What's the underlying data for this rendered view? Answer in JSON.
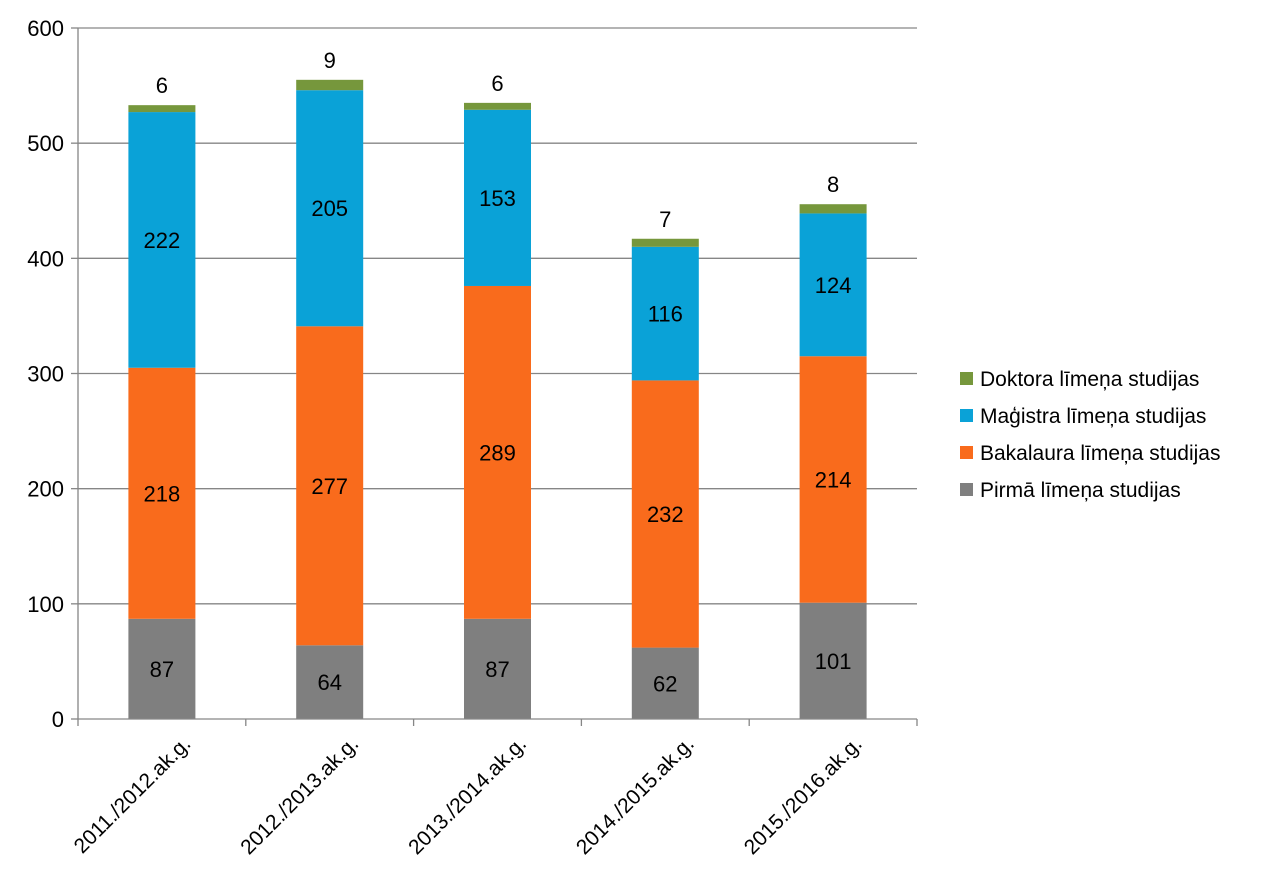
{
  "chart_data": {
    "type": "bar",
    "stacked": true,
    "categories": [
      "2011./2012.ak.g.",
      "2012./2013.ak.g.",
      "2013./2014.ak.g.",
      "2014./2015.ak.g.",
      "2015./2016.ak.g."
    ],
    "series": [
      {
        "name": "Pirmā līmeņa studijas",
        "color": "#7f7f7f",
        "values": [
          87,
          64,
          87,
          62,
          101
        ]
      },
      {
        "name": "Bakalaura līmeņa studijas",
        "color": "#f96b1c",
        "values": [
          218,
          277,
          289,
          232,
          214
        ]
      },
      {
        "name": "Maģistra līmeņa studijas",
        "color": "#0aa2d7",
        "values": [
          222,
          205,
          153,
          116,
          124
        ]
      },
      {
        "name": "Doktora līmeņa studijas",
        "color": "#76973c",
        "values": [
          6,
          9,
          6,
          7,
          8
        ]
      }
    ],
    "ylim": [
      0,
      600
    ],
    "yticks": [
      0,
      100,
      200,
      300,
      400,
      500,
      600
    ],
    "grid": true,
    "legend_position": "right",
    "legend_order": [
      "Doktora līmeņa studijas",
      "Maģistra līmeņa studijas",
      "Bakalaura līmeņa studijas",
      "Pirmā līmeņa studijas"
    ],
    "gridline_color": "#868686",
    "axis_color": "#868686"
  }
}
